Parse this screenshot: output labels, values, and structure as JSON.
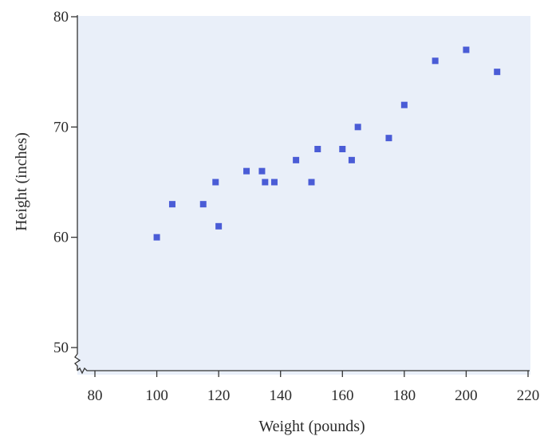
{
  "chart_data": {
    "type": "scatter",
    "title": "",
    "xlabel": "Weight (pounds)",
    "ylabel": "Height (inches)",
    "xlim": [
      75,
      220
    ],
    "ylim": [
      49,
      80
    ],
    "xticks": [
      "80",
      "100",
      "120",
      "140",
      "160",
      "180",
      "200",
      "220"
    ],
    "xtick_values": [
      80,
      100,
      120,
      140,
      160,
      180,
      200,
      220
    ],
    "yticks": [
      "50",
      "60",
      "70",
      "80"
    ],
    "ytick_values": [
      50,
      60,
      70,
      80
    ],
    "y_axis_break": true,
    "x_axis_break": true,
    "grid": false,
    "series": [
      {
        "points": [
          {
            "x": 100,
            "y": 60
          },
          {
            "x": 105,
            "y": 63
          },
          {
            "x": 115,
            "y": 63
          },
          {
            "x": 119,
            "y": 65
          },
          {
            "x": 120,
            "y": 61
          },
          {
            "x": 129,
            "y": 66
          },
          {
            "x": 134,
            "y": 66
          },
          {
            "x": 135,
            "y": 65
          },
          {
            "x": 138,
            "y": 65
          },
          {
            "x": 145,
            "y": 67
          },
          {
            "x": 150,
            "y": 65
          },
          {
            "x": 152,
            "y": 68
          },
          {
            "x": 160,
            "y": 68
          },
          {
            "x": 163,
            "y": 67
          },
          {
            "x": 165,
            "y": 70
          },
          {
            "x": 175,
            "y": 69
          },
          {
            "x": 180,
            "y": 72
          },
          {
            "x": 190,
            "y": 76
          },
          {
            "x": 200,
            "y": 77
          },
          {
            "x": 210,
            "y": 75
          }
        ]
      }
    ],
    "colors": {
      "marker": "#4a5cd6",
      "plot_background": "#e9eff9",
      "axis": "#333333"
    }
  }
}
